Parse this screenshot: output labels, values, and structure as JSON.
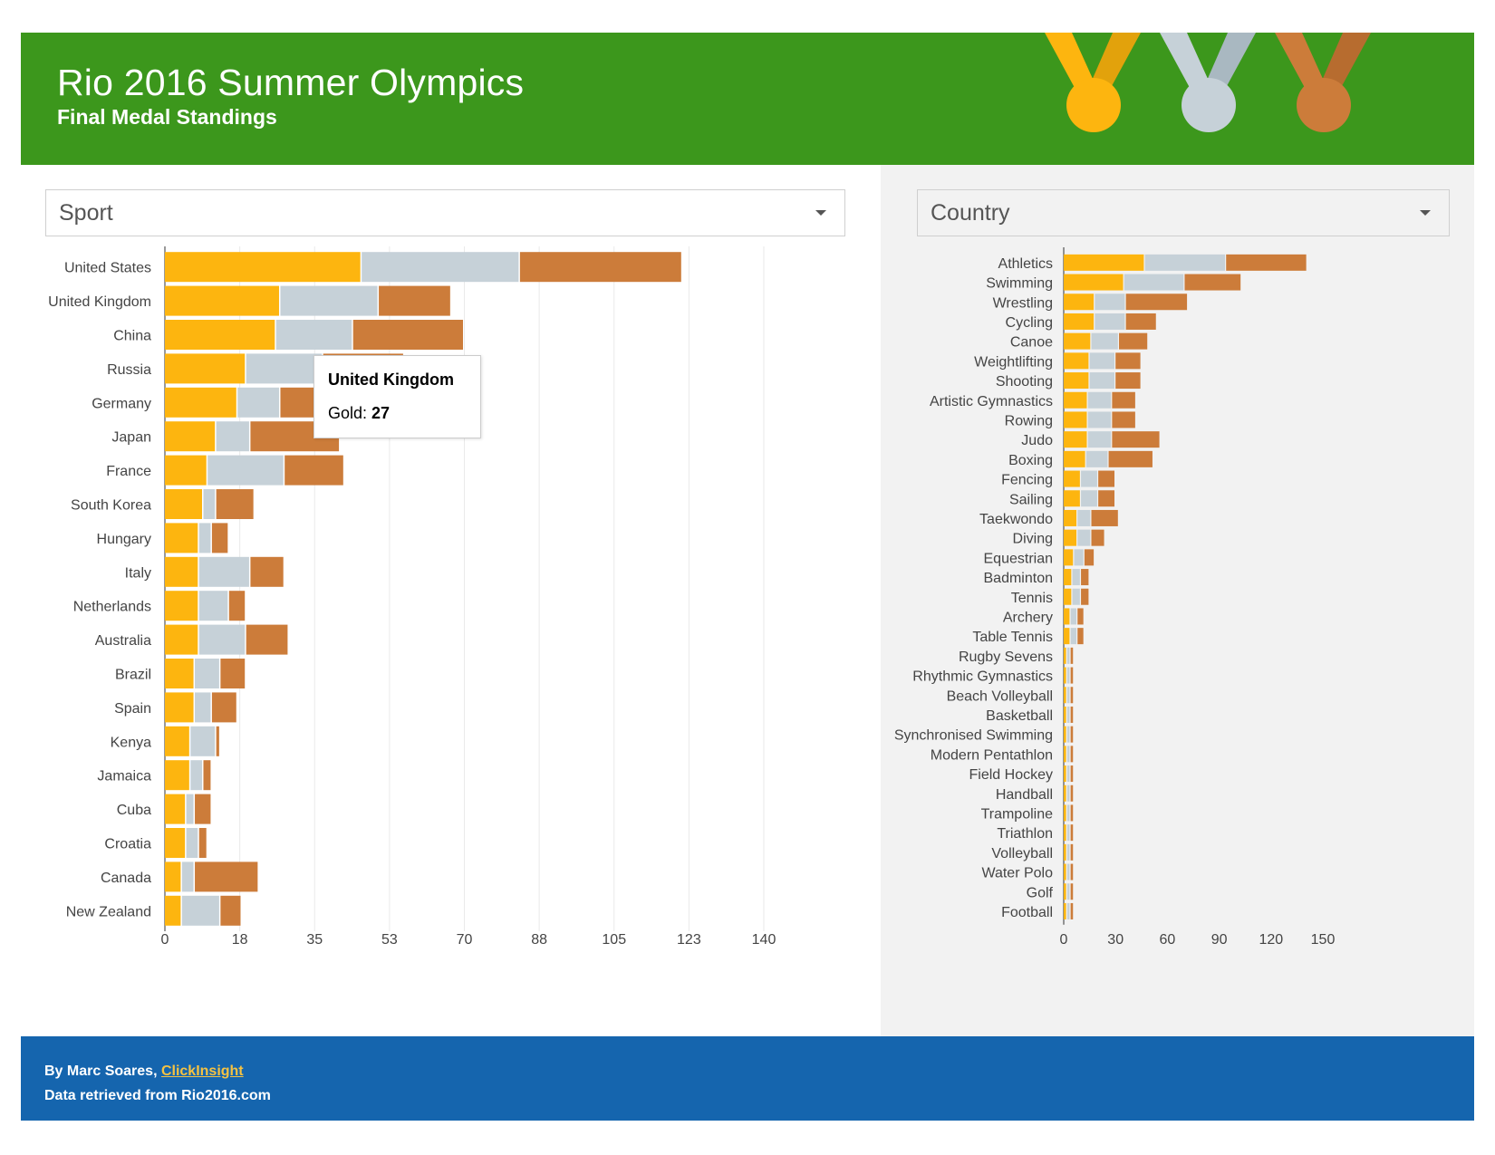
{
  "header": {
    "title": "Rio 2016 Summer Olympics",
    "subtitle": "Final Medal Standings"
  },
  "colors": {
    "header_bg": "#3c971c",
    "footer_bg": "#1565ae",
    "gold": "#fdb50f",
    "silver": "#c6d1d8",
    "bronze": "#cc7c3a",
    "right_panel_bg": "#f2f2f2",
    "link": "#f5c242"
  },
  "icons": [
    "gold-medal-icon",
    "silver-medal-icon",
    "bronze-medal-icon",
    "chevron-down-icon"
  ],
  "filters": {
    "sport_label": "Sport",
    "country_label": "Country"
  },
  "tooltip": {
    "title": "United Kingdom",
    "label": "Gold:",
    "value": "27"
  },
  "footer": {
    "byline_prefix": "By Marc Soares, ",
    "link_text": "ClickInsight",
    "source": "Data retrieved from Rio2016.com"
  },
  "chart_data": [
    {
      "type": "bar",
      "orientation": "horizontal",
      "stacked": true,
      "categories": [
        "United States",
        "United Kingdom",
        "China",
        "Russia",
        "Germany",
        "Japan",
        "France",
        "South Korea",
        "Hungary",
        "Italy",
        "Netherlands",
        "Australia",
        "Brazil",
        "Spain",
        "Kenya",
        "Jamaica",
        "Cuba",
        "Croatia",
        "Canada",
        "New Zealand"
      ],
      "series": [
        {
          "values": [
            46,
            27,
            26,
            19,
            17,
            12,
            10,
            9,
            8,
            8,
            8,
            8,
            7,
            7,
            6,
            6,
            5,
            5,
            4,
            4
          ]
        },
        {
          "values": [
            37,
            23,
            18,
            18,
            10,
            8,
            18,
            3,
            3,
            12,
            7,
            11,
            6,
            4,
            6,
            3,
            2,
            3,
            3,
            9
          ]
        },
        {
          "values": [
            38,
            17,
            26,
            19,
            15,
            21,
            14,
            9,
            4,
            8,
            4,
            10,
            6,
            6,
            1,
            2,
            4,
            2,
            15,
            5
          ]
        }
      ],
      "xticks": [
        "0",
        "18",
        "35",
        "53",
        "70",
        "88",
        "105",
        "123",
        "140"
      ],
      "xlim": [
        0,
        140
      ],
      "grid": true
    },
    {
      "type": "bar",
      "orientation": "horizontal",
      "stacked": true,
      "categories": [
        "Athletics",
        "Swimming",
        "Wrestling",
        "Cycling",
        "Canoe",
        "Weightlifting",
        "Shooting",
        "Artistic Gymnastics",
        "Rowing",
        "Judo",
        "Boxing",
        "Fencing",
        "Sailing",
        "Taekwondo",
        "Diving",
        "Equestrian",
        "Badminton",
        "Tennis",
        "Archery",
        "Table Tennis",
        "Rugby Sevens",
        "Rhythmic Gymnastics",
        "Beach Volleyball",
        "Basketball",
        "Synchronised Swimming",
        "Modern Pentathlon",
        "Field Hockey",
        "Handball",
        "Trampoline",
        "Triathlon",
        "Volleyball",
        "Water Polo",
        "Golf",
        "Football"
      ],
      "series": [
        {
          "values": [
            47,
            35,
            18,
            18,
            16,
            15,
            15,
            14,
            14,
            14,
            13,
            10,
            10,
            8,
            8,
            6,
            5,
            5,
            4,
            4,
            2,
            2,
            2,
            2,
            2,
            2,
            2,
            2,
            2,
            2,
            2,
            2,
            2,
            2
          ]
        },
        {
          "values": [
            47,
            35,
            18,
            18,
            16,
            15,
            15,
            14,
            14,
            14,
            13,
            10,
            10,
            8,
            8,
            6,
            5,
            5,
            4,
            4,
            2,
            2,
            2,
            2,
            2,
            2,
            2,
            2,
            2,
            2,
            2,
            2,
            2,
            2
          ]
        },
        {
          "values": [
            47,
            33,
            36,
            18,
            17,
            15,
            15,
            14,
            14,
            28,
            26,
            10,
            10,
            16,
            8,
            6,
            5,
            5,
            4,
            4,
            2,
            2,
            2,
            2,
            2,
            2,
            2,
            2,
            2,
            2,
            2,
            2,
            2,
            2
          ]
        }
      ],
      "xticks": [
        "0",
        "30",
        "60",
        "90",
        "120",
        "150"
      ],
      "xlim": [
        0,
        150
      ],
      "grid": false
    }
  ]
}
